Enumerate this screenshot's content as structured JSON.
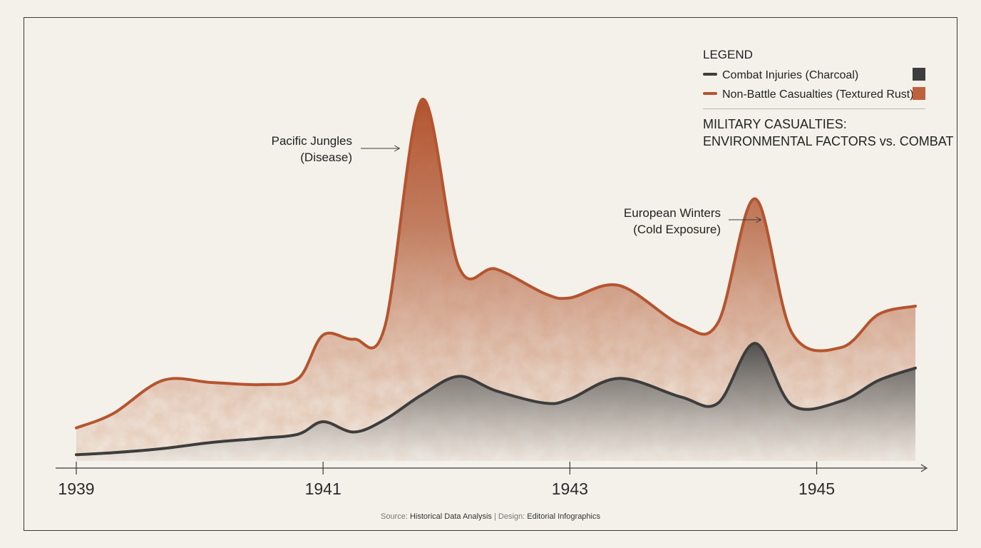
{
  "chart_data": {
    "type": "area",
    "title": "MILITARY CASUALTIES:",
    "subtitle": "ENVIRONMENTAL FACTORS vs. COMBAT",
    "legend_title": "LEGEND",
    "legend_position": "top-right",
    "xlabel": "",
    "ylabel": "",
    "xlim": [
      1939,
      1945.8
    ],
    "ylim": [
      0,
      100
    ],
    "grid": false,
    "x_ticks": [
      "1939",
      "1941",
      "1943",
      "1945"
    ],
    "x": [
      1939,
      1939.3,
      1939.7,
      1940.1,
      1940.5,
      1940.8,
      1941.0,
      1941.25,
      1941.5,
      1941.8,
      1942.1,
      1942.4,
      1942.8,
      1943.0,
      1943.4,
      1943.9,
      1944.2,
      1944.5,
      1944.8,
      1945.2,
      1945.5,
      1945.8
    ],
    "series": [
      {
        "name": "Combat Injuries (Charcoal)",
        "color": "#3d3d3d",
        "values": [
          3,
          4,
          6,
          9,
          11,
          13,
          19,
          14,
          20,
          32,
          41,
          34,
          28,
          30,
          40,
          31,
          28,
          57,
          27,
          29,
          39,
          45
        ]
      },
      {
        "name": "Non-Battle Casualties (Textured Rust)",
        "color": "#b5542f",
        "values": [
          16,
          23,
          39,
          38,
          37,
          40,
          61,
          59,
          65,
          175,
          94,
          93,
          81,
          79,
          85,
          66,
          67,
          127,
          62,
          55,
          71,
          75
        ]
      }
    ],
    "annotations": [
      {
        "lines": [
          "Pacific Jungles",
          "(Disease)"
        ],
        "target_x": 1941.85
      },
      {
        "lines": [
          "European Winters",
          "(Cold Exposure)"
        ],
        "target_x": 1944.78
      }
    ]
  },
  "source": {
    "prefix": "Source:",
    "source_text": "Historical Data Analysis",
    "separator": "|",
    "design_prefix": "Design:",
    "design_text": "Editorial Infographics"
  }
}
